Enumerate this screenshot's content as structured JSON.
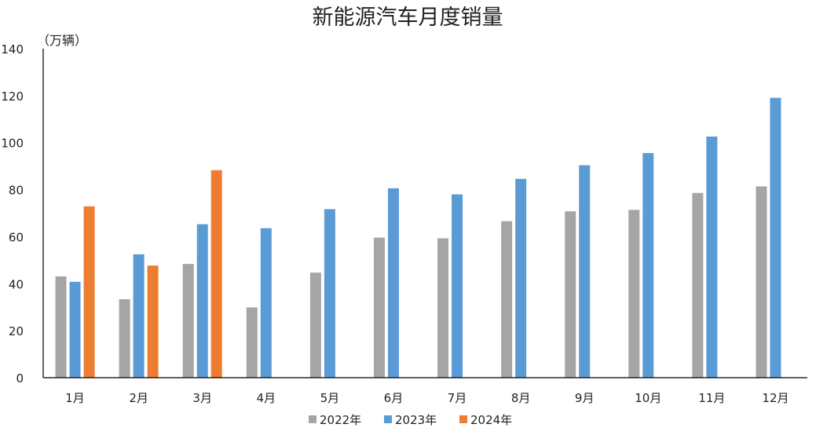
{
  "chart_data": {
    "type": "bar",
    "title": "新能源汽车月度销量",
    "unit_label": "（万辆）",
    "xlabel": "",
    "ylabel": "",
    "ylim": [
      0,
      140
    ],
    "yticks": [
      0,
      20,
      40,
      60,
      80,
      100,
      120,
      140
    ],
    "grid": false,
    "legend_position": "bottom",
    "categories": [
      "1月",
      "2月",
      "3月",
      "4月",
      "5月",
      "6月",
      "7月",
      "8月",
      "9月",
      "10月",
      "11月",
      "12月"
    ],
    "series": [
      {
        "name": "2022年",
        "color": "#a5a5a5",
        "values": [
          43.1,
          33.4,
          48.4,
          29.9,
          44.7,
          59.6,
          59.3,
          66.6,
          70.8,
          71.4,
          78.6,
          81.4
        ]
      },
      {
        "name": "2023年",
        "color": "#5b9bd5",
        "values": [
          40.8,
          52.5,
          65.3,
          63.6,
          71.7,
          80.6,
          78.0,
          84.6,
          90.4,
          95.6,
          102.6,
          119.1
        ]
      },
      {
        "name": "2024年",
        "color": "#ed7d31",
        "values": [
          72.9,
          47.7,
          88.3,
          null,
          null,
          null,
          null,
          null,
          null,
          null,
          null,
          null
        ]
      }
    ]
  }
}
